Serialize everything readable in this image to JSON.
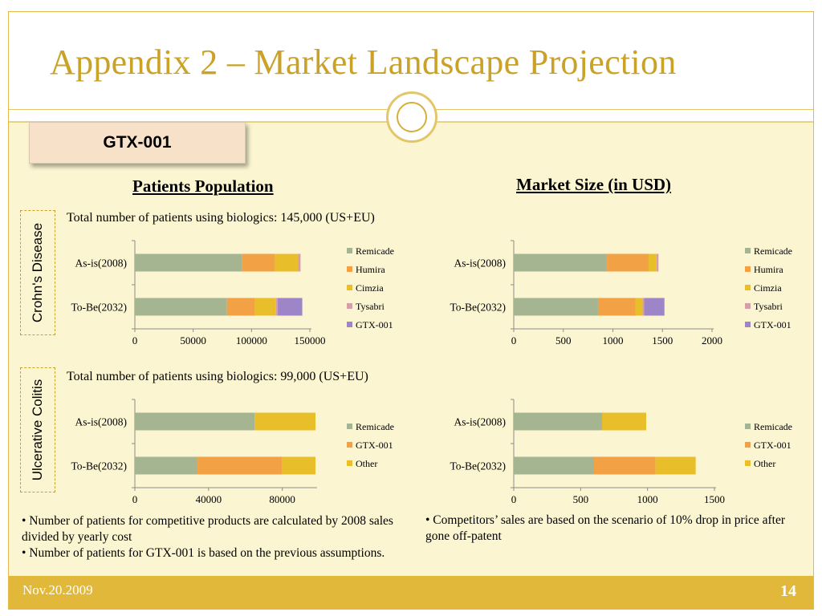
{
  "slide": {
    "title": "Appendix 2 – Market Landscape Projection",
    "product_label": "GTX-001",
    "headings": {
      "patients": "Patients Population",
      "market": "Market Size (in USD)"
    },
    "crohns": {
      "label": "Crohn's Disease",
      "note": "Total number of patients using biologics: 145,000 (US+EU)"
    },
    "uc": {
      "label": "Ulcerative Colitis",
      "note": "Total number of patients using biologics: 99,000 (US+EU)"
    },
    "bullets_left": [
      "• Number of patients for competitive products are calculated by 2008 sales divided by yearly cost",
      "• Number of patients for GTX-001 is based on the previous assumptions."
    ],
    "bullets_right": [
      "• Competitors’ sales are based on the scenario of 10% drop in price after gone off-patent"
    ],
    "footer": {
      "date": "Nov.20.2009",
      "page": "14"
    }
  },
  "colors": {
    "Remicade": "#a5b592",
    "Humira": "#f2a144",
    "Cimzia": "#e8bf2b",
    "Tysabri": "#d69fa8",
    "GTX-001": "#9d85c8",
    "Other": "#e8bf2b",
    "GTX-001 (UC)": "#f2a144"
  },
  "chart_data": [
    {
      "type": "bar",
      "orientation": "horizontal",
      "stacked": true,
      "categories": [
        "As-is(2008)",
        "To-Be(2032)"
      ],
      "series": [
        {
          "name": "Remicade",
          "values": [
            92000,
            79000
          ]
        },
        {
          "name": "Humira",
          "values": [
            28000,
            24000
          ]
        },
        {
          "name": "Cimzia",
          "values": [
            20000,
            18000
          ]
        },
        {
          "name": "Tysabri",
          "values": [
            2000,
            1500
          ]
        },
        {
          "name": "GTX-001",
          "values": [
            0,
            21000
          ]
        }
      ],
      "xlim": [
        0,
        150000
      ],
      "xticks": [
        "0",
        "50000",
        "100000",
        "150000"
      ],
      "legend": "right"
    },
    {
      "type": "bar",
      "orientation": "horizontal",
      "stacked": true,
      "categories": [
        "As-is(2008)",
        "To-Be(2032)"
      ],
      "series": [
        {
          "name": "Remicade",
          "values": [
            940,
            850
          ]
        },
        {
          "name": "Humira",
          "values": [
            420,
            380
          ]
        },
        {
          "name": "Cimzia",
          "values": [
            80,
            70
          ]
        },
        {
          "name": "Tysabri",
          "values": [
            20,
            15
          ]
        },
        {
          "name": "GTX-001",
          "values": [
            0,
            205
          ]
        }
      ],
      "xlim": [
        0,
        2000
      ],
      "xticks": [
        "0",
        "500",
        "1000",
        "1500",
        "2000"
      ],
      "legend": "right"
    },
    {
      "type": "bar",
      "orientation": "horizontal",
      "stacked": true,
      "categories": [
        "As-is(2008)",
        "To-Be(2032)"
      ],
      "series": [
        {
          "name": "Remicade",
          "values": [
            65000,
            34000
          ]
        },
        {
          "name": "GTX-001",
          "values": [
            0,
            46000
          ]
        },
        {
          "name": "Other",
          "values": [
            33000,
            18000
          ]
        }
      ],
      "xlim": [
        0,
        98000
      ],
      "xticks": [
        "0",
        "40000",
        "80000"
      ],
      "tick_values": [
        0,
        40000,
        80000
      ],
      "legend": "right"
    },
    {
      "type": "bar",
      "orientation": "horizontal",
      "stacked": true,
      "categories": [
        "As-is(2008)",
        "To-Be(2032)"
      ],
      "series": [
        {
          "name": "Remicade",
          "values": [
            660,
            600
          ]
        },
        {
          "name": "GTX-001",
          "values": [
            0,
            460
          ]
        },
        {
          "name": "Other",
          "values": [
            330,
            300
          ]
        }
      ],
      "xlim": [
        0,
        1500
      ],
      "xticks": [
        "0",
        "500",
        "1000",
        "1500"
      ],
      "legend": "right"
    }
  ]
}
